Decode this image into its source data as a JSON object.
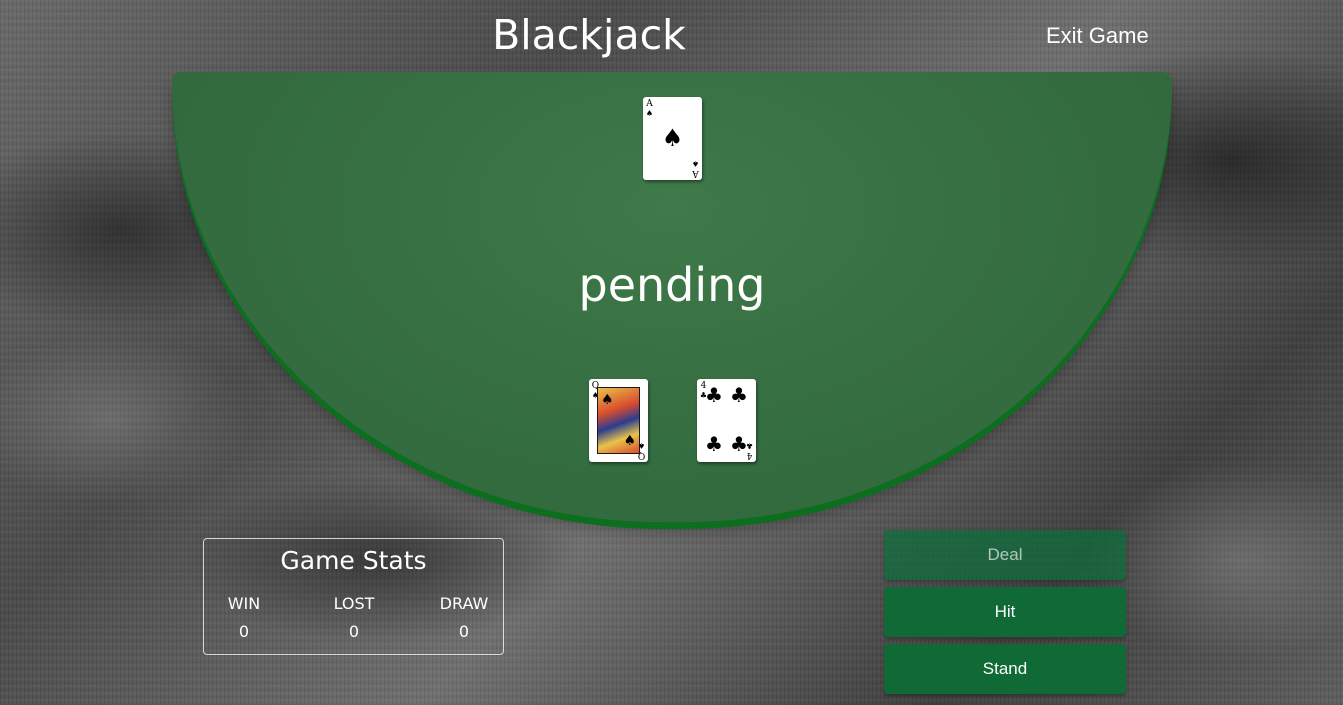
{
  "header": {
    "title": "Blackjack",
    "exit_label": "Exit Game"
  },
  "table": {
    "status": "pending",
    "felt_color": "#366f42",
    "rim_color": "#0b6f1f"
  },
  "dealer": {
    "cards": [
      {
        "rank": "A",
        "suit": "♠",
        "suit_name": "spades"
      }
    ]
  },
  "player": {
    "cards": [
      {
        "rank": "Q",
        "suit": "♠",
        "suit_name": "spades"
      },
      {
        "rank": "4",
        "suit": "♣",
        "suit_name": "clubs"
      }
    ]
  },
  "stats": {
    "title": "Game Stats",
    "win_label": "WIN",
    "win_value": "0",
    "lost_label": "LOST",
    "lost_value": "0",
    "draw_label": "DRAW",
    "draw_value": "0"
  },
  "controls": {
    "deal_label": "Deal",
    "hit_label": "Hit",
    "stand_label": "Stand",
    "button_color": "#0f6a35"
  }
}
